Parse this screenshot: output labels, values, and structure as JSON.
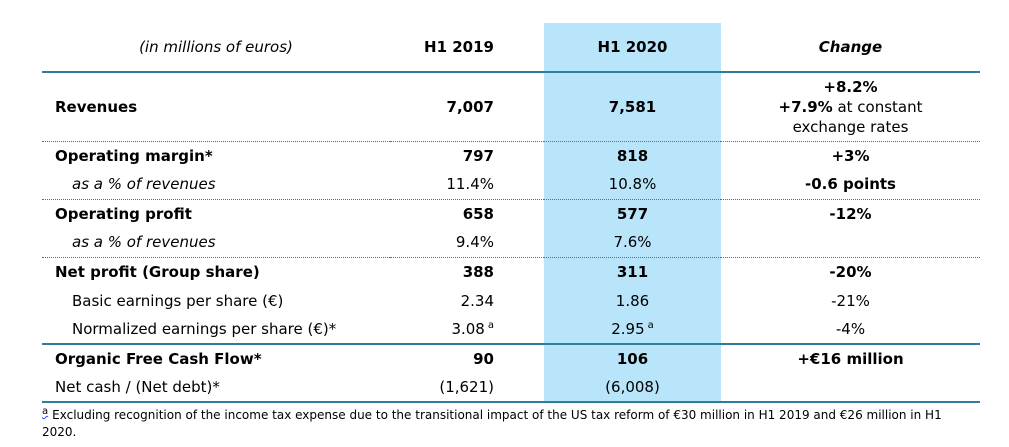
{
  "colors": {
    "highlight_column": "#B9E5FB",
    "rule_line": "#2E7D9C",
    "squiggle": "#3E46F5"
  },
  "header": {
    "unit_label": "(in millions of euros)",
    "col_2019": "H1 2019",
    "col_2020": "H1 2020",
    "col_change": "Change"
  },
  "rows": [
    {
      "label": "Revenues",
      "v2019": "7,007",
      "v2020": "7,581",
      "change": {
        "line1": "+8.2%",
        "line2_bold": "+7.9%",
        "line2_rest": " at constant",
        "line3": "exchange rates"
      }
    },
    {
      "label": "Operating margin*",
      "v2019": "797",
      "v2020": "818",
      "change": "+3%"
    },
    {
      "label": "as a % of revenues",
      "v2019": "11.4%",
      "v2020": "10.8%",
      "change": "-0.6 points"
    },
    {
      "label": "Operating profit",
      "v2019": "658",
      "v2020": "577",
      "change": "-12%"
    },
    {
      "label": "as a % of revenues",
      "v2019": "9.4%",
      "v2020": "7.6%",
      "change": ""
    },
    {
      "label": "Net profit (Group share)",
      "v2019": "388",
      "v2020": "311",
      "change": "-20%"
    },
    {
      "label": "Basic earnings per share (€)",
      "v2019": "2.34",
      "v2020": "1.86",
      "change": "-21%"
    },
    {
      "label": "Normalized earnings per share (€)*",
      "v2019": "3.08",
      "v2019_sup": "a",
      "v2020": "2.95",
      "v2020_sup": "a",
      "change": "-4%"
    },
    {
      "label": "Organic Free Cash Flow*",
      "v2019": "90",
      "v2020": "106",
      "change": "+€16 million"
    },
    {
      "label": "Net cash / (Net debt)*",
      "v2019": "(1,621)",
      "v2020": "(6,008)",
      "change": ""
    }
  ],
  "footnote": {
    "marker": "a",
    "line1": "Excluding recognition of the income tax expense due to the transitional impact of the US tax reform of €30 million in H1 2019 and €26 million in H1",
    "line2": "2020."
  }
}
